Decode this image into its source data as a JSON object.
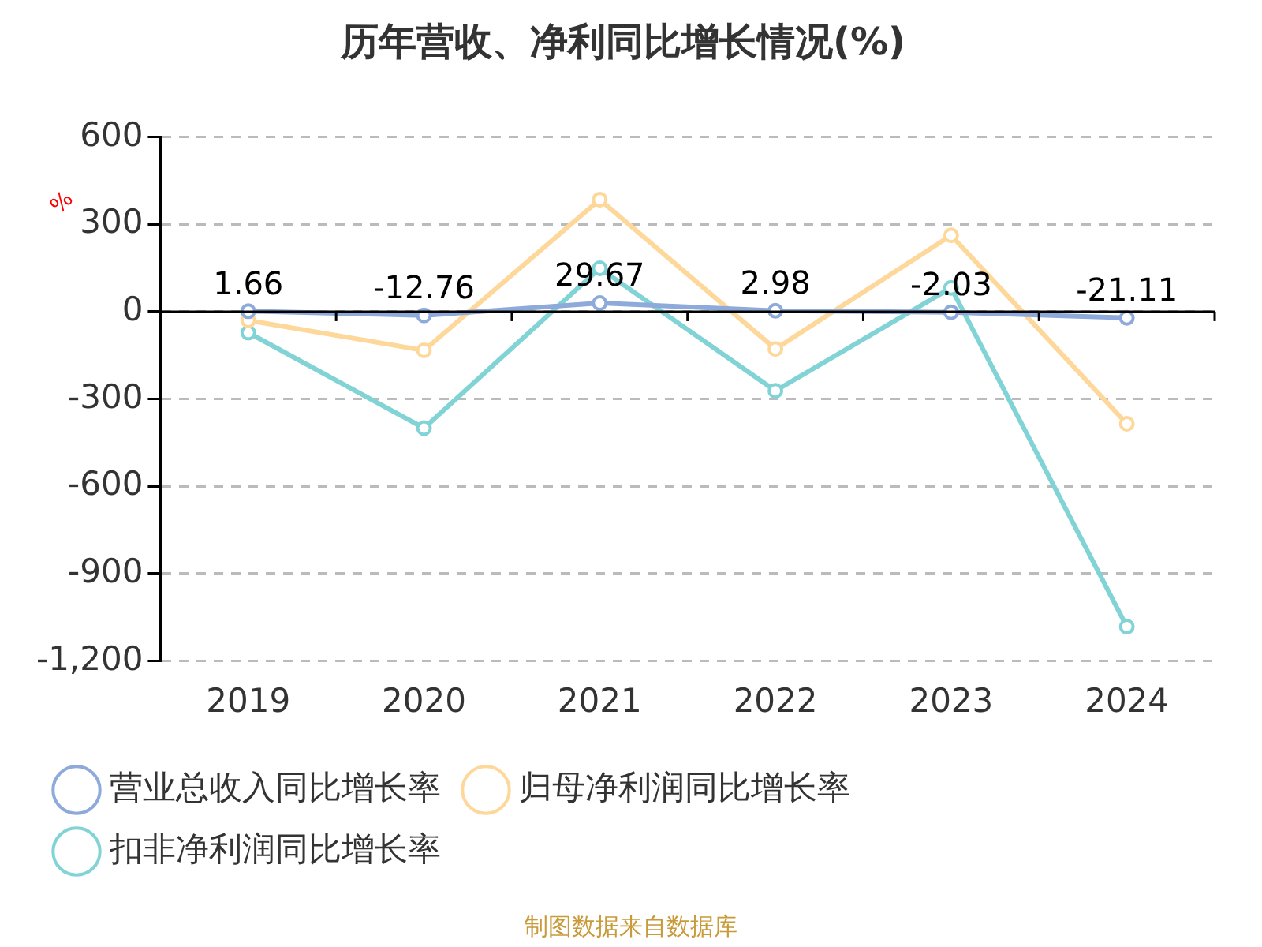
{
  "chart_data": {
    "type": "line",
    "title": "历年营收、净利同比增长情况(%)",
    "ylabel": "%",
    "categories": [
      "2019",
      "2020",
      "2021",
      "2022",
      "2023",
      "2024"
    ],
    "series": [
      {
        "name": "营业总收入同比增长率",
        "color": "#8eaadb",
        "values": [
          1.66,
          -12.76,
          29.67,
          2.98,
          -2.03,
          -21.11
        ],
        "value_labels": [
          "1.66",
          "-12.76",
          "29.67",
          "2.98",
          "-2.03",
          "-21.11"
        ]
      },
      {
        "name": "归母净利润同比增长率",
        "color": "#fdd89a",
        "values": [
          -30,
          -133,
          385,
          -128,
          262,
          -385
        ]
      },
      {
        "name": "扣非净利润同比增长率",
        "color": "#82d3d6",
        "values": [
          -72,
          -400,
          149,
          -272,
          82,
          -1082
        ]
      }
    ],
    "ylim": [
      -1200,
      600
    ],
    "yticks": [
      {
        "value": -1200,
        "label": "-1,200"
      },
      -900,
      -600,
      -300,
      0,
      300,
      600
    ],
    "grid": "y",
    "legend": "bottom",
    "marker": "circle",
    "line_style": "solid",
    "annotations": [
      "制图数据来自数据库"
    ]
  }
}
